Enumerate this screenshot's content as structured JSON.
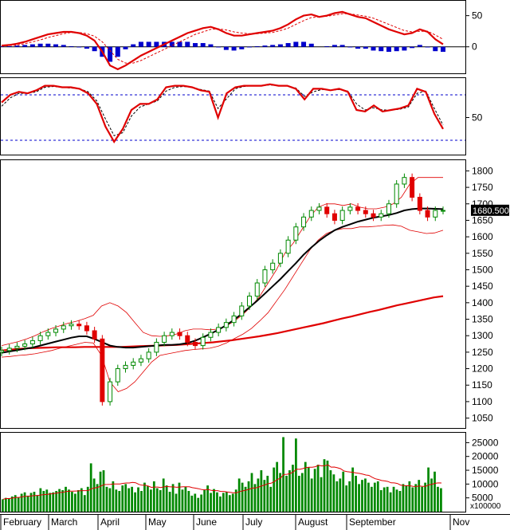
{
  "chart_data": [
    {
      "type": "line",
      "panel": "macd",
      "yticks": [
        50,
        0
      ],
      "ylim": [
        -40,
        70
      ],
      "grid": false,
      "colors": {
        "macd": "#e00000",
        "signal": "#e00000",
        "histogram": "#0000cc"
      },
      "series": [
        {
          "role": "macd",
          "values": [
            2,
            3,
            5,
            8,
            12,
            16,
            20,
            22,
            24,
            24,
            22,
            18,
            10,
            -8,
            -30,
            -36,
            -30,
            -22,
            -14,
            -8,
            -2,
            4,
            10,
            16,
            22,
            26,
            30,
            32,
            28,
            22,
            18,
            18,
            20,
            22,
            24,
            26,
            30,
            36,
            44,
            50,
            52,
            48,
            50,
            54,
            56,
            52,
            48,
            46,
            40,
            34,
            28,
            24,
            20,
            22,
            28,
            24,
            12,
            4
          ]
        },
        {
          "role": "signal",
          "values": [
            1,
            2,
            3,
            5,
            8,
            11,
            15,
            18,
            21,
            23,
            23,
            21,
            17,
            8,
            -6,
            -20,
            -26,
            -26,
            -22,
            -16,
            -10,
            -4,
            2,
            8,
            14,
            20,
            24,
            28,
            29,
            27,
            24,
            22,
            21,
            21,
            22,
            23,
            26,
            30,
            36,
            42,
            47,
            48,
            49,
            51,
            53,
            53,
            51,
            49,
            46,
            41,
            36,
            31,
            26,
            24,
            25,
            25,
            19,
            12
          ]
        },
        {
          "role": "histogram",
          "values": [
            1,
            1,
            2,
            3,
            4,
            5,
            5,
            4,
            3,
            1,
            -1,
            -3,
            -7,
            -16,
            -24,
            -16,
            -4,
            4,
            8,
            8,
            8,
            8,
            8,
            8,
            8,
            6,
            6,
            4,
            -1,
            -5,
            -6,
            -4,
            -1,
            1,
            2,
            3,
            4,
            6,
            8,
            8,
            5,
            0,
            1,
            3,
            3,
            -1,
            -3,
            -3,
            -6,
            -7,
            -8,
            -7,
            -6,
            -2,
            3,
            -1,
            -7,
            -8
          ]
        }
      ]
    },
    {
      "type": "line",
      "panel": "stochastic",
      "yticks": [
        50
      ],
      "ylim": [
        0,
        100
      ],
      "reference_lines": [
        80,
        20
      ],
      "colors": {
        "k": "#e00000",
        "d": "#000000",
        "reference": "#0000cc"
      },
      "series": [
        {
          "role": "k",
          "values": [
            70,
            80,
            84,
            82,
            86,
            92,
            92,
            90,
            90,
            88,
            82,
            68,
            38,
            18,
            35,
            60,
            68,
            68,
            74,
            90,
            92,
            92,
            90,
            86,
            84,
            50,
            82,
            90,
            92,
            92,
            92,
            94,
            92,
            92,
            88,
            74,
            88,
            88,
            86,
            88,
            84,
            60,
            58,
            66,
            58,
            60,
            62,
            66,
            88,
            84,
            55,
            35
          ]
        },
        {
          "role": "d",
          "values": [
            65,
            76,
            82,
            82,
            84,
            90,
            91,
            90,
            89,
            88,
            84,
            72,
            48,
            26,
            30,
            52,
            64,
            68,
            72,
            85,
            90,
            91,
            90,
            87,
            85,
            62,
            75,
            88,
            91,
            92,
            92,
            93,
            92,
            92,
            89,
            78,
            84,
            87,
            86,
            87,
            85,
            68,
            60,
            63,
            60,
            60,
            61,
            64,
            82,
            85,
            62,
            40
          ]
        }
      ]
    },
    {
      "type": "candlestick",
      "panel": "price",
      "yticks": [
        1800,
        1750,
        1700,
        1650,
        1600,
        1550,
        1500,
        1450,
        1400,
        1350,
        1300,
        1250,
        1200,
        1150,
        1100,
        1050
      ],
      "ylim": [
        1020,
        1830
      ],
      "last_price": "1680.500",
      "colors": {
        "up": "#008800",
        "down": "#e00000",
        "ma_short": "#000000",
        "ma_long": "#e00000",
        "bands": "#e00000",
        "price_tag_bg": "#000000",
        "price_tag_text": "#ffffff"
      },
      "close": [
        1255,
        1262,
        1268,
        1275,
        1285,
        1300,
        1310,
        1320,
        1330,
        1335,
        1330,
        1315,
        1290,
        1100,
        1160,
        1200,
        1210,
        1220,
        1230,
        1250,
        1280,
        1300,
        1310,
        1300,
        1280,
        1270,
        1295,
        1310,
        1325,
        1340,
        1360,
        1390,
        1420,
        1460,
        1500,
        1520,
        1550,
        1590,
        1630,
        1660,
        1680,
        1690,
        1670,
        1650,
        1680,
        1690,
        1680,
        1670,
        1660,
        1670,
        1700,
        1760,
        1780,
        1720,
        1680,
        1660,
        1680,
        1680
      ],
      "ma_short": [
        1248,
        1252,
        1256,
        1260,
        1264,
        1270,
        1276,
        1282,
        1288,
        1294,
        1298,
        1298,
        1290,
        1280,
        1270,
        1266,
        1264,
        1264,
        1266,
        1268,
        1270,
        1272,
        1272,
        1274,
        1278,
        1285,
        1295,
        1306,
        1318,
        1332,
        1348,
        1366,
        1386,
        1406,
        1428,
        1450,
        1472,
        1496,
        1520,
        1546,
        1568,
        1588,
        1605,
        1620,
        1630,
        1638,
        1646,
        1652,
        1658,
        1662,
        1666,
        1672,
        1680,
        1684,
        1686,
        1686,
        1685,
        1684
      ],
      "ma_long": [
        1255,
        1258,
        1260,
        1262,
        1263,
        1264,
        1265,
        1265,
        1265,
        1266,
        1266,
        1266,
        1266,
        1266,
        1267,
        1268,
        1269,
        1270,
        1271,
        1272,
        1274,
        1276,
        1278,
        1280,
        1283,
        1286,
        1290,
        1294,
        1298,
        1303,
        1308,
        1314,
        1320,
        1326,
        1332,
        1338,
        1345,
        1352,
        1358,
        1365,
        1372,
        1378,
        1385,
        1392,
        1398,
        1404,
        1410,
        1416,
        1420
      ],
      "upper_band": [
        1270,
        1276,
        1282,
        1290,
        1300,
        1312,
        1322,
        1330,
        1338,
        1344,
        1352,
        1362,
        1390,
        1400,
        1390,
        1370,
        1340,
        1310,
        1300,
        1298,
        1300,
        1305,
        1315,
        1320,
        1320,
        1318,
        1320,
        1330,
        1345,
        1365,
        1390,
        1420,
        1460,
        1500,
        1550,
        1580,
        1620,
        1660,
        1690,
        1700,
        1700,
        1695,
        1700,
        1690,
        1685,
        1685,
        1690,
        1700,
        1720,
        1760,
        1780,
        1780,
        1780,
        1780
      ],
      "lower_band": [
        1235,
        1237,
        1240,
        1242,
        1245,
        1250,
        1255,
        1262,
        1268,
        1274,
        1280,
        1278,
        1240,
        1160,
        1130,
        1140,
        1160,
        1190,
        1220,
        1240,
        1245,
        1250,
        1255,
        1258,
        1260,
        1262,
        1268,
        1278,
        1292,
        1305,
        1322,
        1345,
        1370,
        1405,
        1440,
        1480,
        1520,
        1560,
        1590,
        1610,
        1620,
        1625,
        1625,
        1630,
        1630,
        1632,
        1635,
        1636,
        1632,
        1620,
        1615,
        1610,
        1612,
        1620
      ]
    },
    {
      "type": "bar",
      "panel": "volume",
      "yticks": [
        25000,
        20000,
        15000,
        10000,
        5000
      ],
      "ylim": [
        0,
        28000
      ],
      "unit_label": "x100000",
      "colors": {
        "bars": "#008800",
        "average": "#e00000"
      },
      "values": [
        4500,
        5000,
        4800,
        5500,
        6000,
        5200,
        6500,
        7000,
        5800,
        6800,
        7200,
        6000,
        8500,
        7500,
        8000,
        6800,
        7000,
        7500,
        8200,
        7800,
        9000,
        8000,
        7200,
        6500,
        7800,
        8500,
        6000,
        9000,
        17500,
        12000,
        10000,
        14500,
        15000,
        9000,
        8500,
        11000,
        8000,
        7500,
        9500,
        10000,
        8500,
        9000,
        7000,
        8800,
        7500,
        10500,
        9200,
        8000,
        11000,
        8500,
        7800,
        12000,
        9500,
        7200,
        10000,
        6500,
        10500,
        8000,
        9000,
        7500,
        5800,
        6500,
        5000,
        6200,
        7800,
        9500,
        6800,
        8200,
        7000,
        5500,
        6800,
        7200,
        6000,
        6500,
        8000,
        12000,
        10500,
        9000,
        11000,
        14000,
        10000,
        12000,
        15000,
        11500,
        13000,
        9000,
        16000,
        18000,
        14000,
        27000,
        13000,
        15000,
        17000,
        26500,
        13000,
        14000,
        18000,
        16000,
        12000,
        15500,
        17000,
        12500,
        19000,
        18500,
        15000,
        13500,
        11000,
        12000,
        14500,
        9500,
        11000,
        16000,
        13000,
        10000,
        11500,
        12000,
        10500,
        9000,
        10500,
        11000,
        7800,
        8800,
        9000,
        7000,
        9000,
        8000,
        7500,
        10000,
        9500,
        11000,
        8800,
        10000,
        11500,
        9000,
        10500,
        16000,
        12000,
        14500,
        9000,
        8500
      ]
    }
  ],
  "months": [
    "February",
    "March",
    "April",
    "May",
    "June",
    "July",
    "August",
    "September",
    "Nov"
  ]
}
